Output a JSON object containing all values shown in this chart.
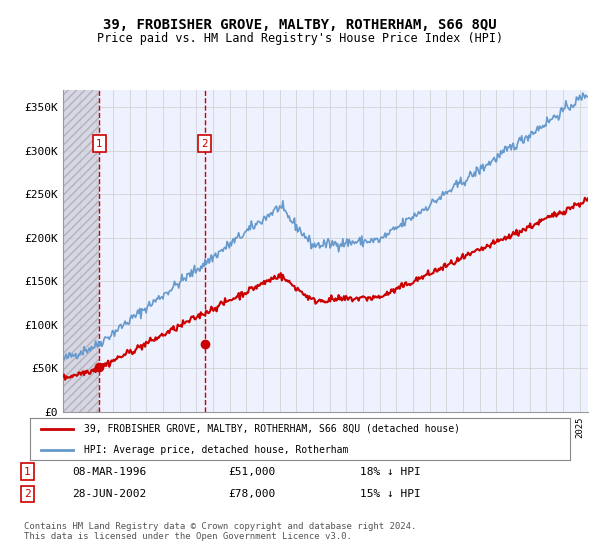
{
  "title": "39, FROBISHER GROVE, MALTBY, ROTHERHAM, S66 8QU",
  "subtitle": "Price paid vs. HM Land Registry's House Price Index (HPI)",
  "legend_line1": "39, FROBISHER GROVE, MALTBY, ROTHERHAM, S66 8QU (detached house)",
  "legend_line2": "HPI: Average price, detached house, Rotherham",
  "transaction1_label": "1",
  "transaction1_date": "08-MAR-1996",
  "transaction1_price": "£51,000",
  "transaction1_hpi": "18% ↓ HPI",
  "transaction1_x": 1996.18,
  "transaction1_y": 51000,
  "transaction2_label": "2",
  "transaction2_date": "28-JUN-2002",
  "transaction2_price": "£78,000",
  "transaction2_hpi": "15% ↓ HPI",
  "transaction2_x": 2002.49,
  "transaction2_y": 78000,
  "footer": "Contains HM Land Registry data © Crown copyright and database right 2024.\nThis data is licensed under the Open Government Licence v3.0.",
  "price_color": "#cc0000",
  "hpi_color": "#6699cc",
  "ylim": [
    0,
    370000
  ],
  "xlim_start": 1994,
  "xlim_end": 2025.5,
  "background_color": "#eef2ff",
  "grid_color": "#cccccc"
}
